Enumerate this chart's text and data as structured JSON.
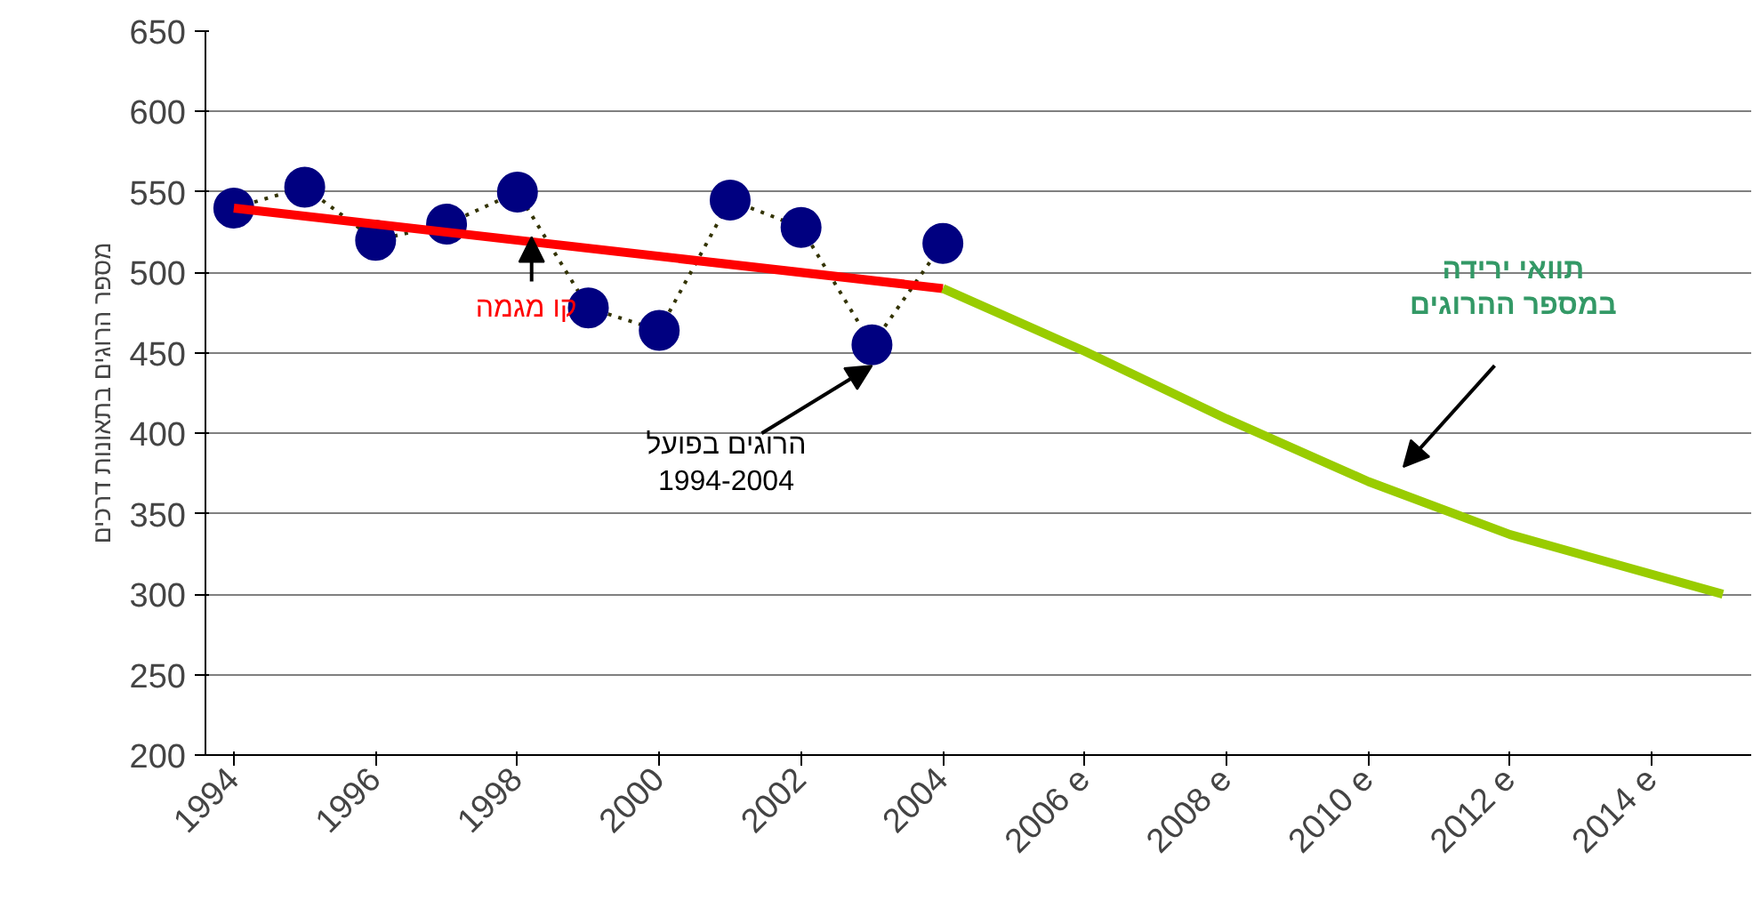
{
  "chart_data": {
    "type": "line",
    "ylabel": "מספר הרוגים בתאונות דרכים",
    "x": [
      1994,
      1995,
      1996,
      1997,
      1998,
      1999,
      2000,
      2001,
      2002,
      2003,
      2004
    ],
    "xlim": [
      1993.6,
      2015.4
    ],
    "xticks": [
      {
        "value": 1994,
        "label": "1994"
      },
      {
        "value": 1996,
        "label": "1996"
      },
      {
        "value": 1998,
        "label": "1998"
      },
      {
        "value": 2000,
        "label": "2000"
      },
      {
        "value": 2002,
        "label": "2002"
      },
      {
        "value": 2004,
        "label": "2004"
      },
      {
        "value": 2006,
        "label": "2006 e"
      },
      {
        "value": 2008,
        "label": "2008 e"
      },
      {
        "value": 2010,
        "label": "2010 e"
      },
      {
        "value": 2012,
        "label": "2012 e"
      },
      {
        "value": 2014,
        "label": "2014 e"
      }
    ],
    "ylim": [
      200,
      650
    ],
    "yticks": [
      200,
      250,
      300,
      350,
      400,
      450,
      500,
      550,
      600,
      650
    ],
    "grid": "y",
    "series": [
      {
        "color": "#000080",
        "marker": "circle",
        "line_style": "dotted",
        "values": [
          540,
          553,
          520,
          530,
          550,
          478,
          464,
          545,
          528,
          455,
          518
        ]
      },
      {
        "color": "#ff0000",
        "marker": "none",
        "line_style": "solid",
        "x": [
          1994,
          2004
        ],
        "values": [
          540,
          490
        ]
      },
      {
        "color": "#99cc00",
        "marker": "none",
        "line_style": "solid",
        "x": [
          2004,
          2006,
          2008,
          2010,
          2012,
          2015
        ],
        "values": [
          490,
          451,
          409,
          370,
          337,
          300
        ]
      }
    ],
    "annotations": [
      {
        "text": "קו מגמה",
        "x": 1998.2,
        "y": 522
      },
      {
        "text": "הרוגים בפועל\n1994-2004",
        "x": 2003,
        "y": 442
      },
      "תוואי ירידה\nבמספר ההרוגים"
    ]
  }
}
